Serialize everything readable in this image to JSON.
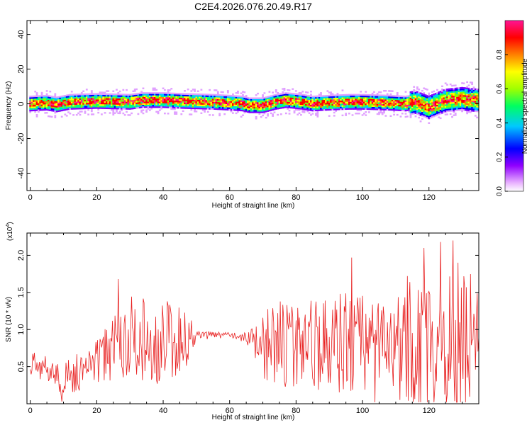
{
  "figure": {
    "title": "C2E4.2026.076.20.49.R17"
  },
  "chart_data": [
    {
      "type": "heatmap",
      "xlabel": "Height of straight line (km)",
      "ylabel": "Frequency (Hz)",
      "xlim": [
        -1,
        135
      ],
      "ylim": [
        -50,
        48
      ],
      "x_ticks": [
        0,
        20,
        40,
        60,
        80,
        100,
        120
      ],
      "x_tick_labels": [
        "0",
        "20",
        "40",
        "60",
        "80",
        "100",
        "120"
      ],
      "y_ticks": [
        -40,
        -20,
        0,
        20,
        40
      ],
      "y_tick_labels": [
        "-40",
        "-20",
        "0",
        "20",
        "40"
      ],
      "grid": false,
      "colorbar": {
        "label": "Normalized spectral amplitude",
        "range": [
          0,
          1
        ],
        "ticks": [
          0,
          0.2,
          0.4,
          0.6,
          0.8
        ],
        "tick_labels": [
          "0.0",
          "0.2",
          "0.4",
          "0.6",
          "0.8"
        ],
        "colormap": [
          "#ffffff",
          "#e0a0ff",
          "#8000ff",
          "#0000ff",
          "#00c8ff",
          "#00ff80",
          "#80ff00",
          "#ffff00",
          "#ff8000",
          "#ff0000",
          "#ff1493"
        ]
      },
      "ridge": {
        "x": [
          0,
          5,
          8,
          12,
          20,
          30,
          34,
          40,
          46,
          55,
          60,
          64,
          66,
          70,
          74,
          77,
          82,
          85,
          90,
          96,
          100,
          108,
          113,
          116,
          120,
          125,
          130,
          135
        ],
        "frequency": [
          0,
          0.5,
          -0.5,
          1,
          1.5,
          1,
          2,
          2,
          1.5,
          1,
          0.5,
          0,
          -1,
          -1,
          1,
          2,
          1,
          0,
          0.5,
          1,
          1,
          0.5,
          0,
          1,
          -2,
          2,
          3,
          2
        ]
      }
    },
    {
      "type": "line",
      "xlabel": "Height of straight line (km)",
      "ylabel": "SNR (10 * v/v)",
      "multiplier_label": "(x10",
      "multiplier_exponent": "4",
      "xlim": [
        -1,
        135
      ],
      "ylim": [
        0,
        2.3
      ],
      "x_ticks": [
        0,
        20,
        40,
        60,
        80,
        100,
        120
      ],
      "x_tick_labels": [
        "0",
        "20",
        "40",
        "60",
        "80",
        "100",
        "120"
      ],
      "y_ticks": [
        0.5,
        1.0,
        1.5,
        2.0
      ],
      "y_tick_labels": [
        "0.5",
        "1.0",
        "1.5",
        "2.0"
      ],
      "grid": false,
      "series": [
        {
          "color": "#e82020",
          "envelope_km": [
            0,
            10,
            20,
            25,
            30,
            40,
            47,
            50,
            60,
            65,
            70,
            75,
            80,
            90,
            95,
            100,
            105,
            110,
            115,
            120,
            125,
            130,
            135
          ],
          "envelope_mean": [
            0.55,
            0.35,
            0.55,
            0.75,
            0.85,
            0.85,
            0.9,
            0.92,
            0.93,
            0.9,
            0.8,
            0.82,
            0.82,
            0.8,
            0.8,
            0.8,
            0.8,
            0.8,
            0.78,
            0.8,
            0.8,
            0.8,
            0.8
          ],
          "envelope_swing": [
            0.15,
            0.25,
            0.3,
            0.5,
            0.6,
            0.6,
            0.45,
            0.06,
            0.04,
            0.08,
            0.45,
            0.6,
            0.6,
            0.65,
            0.7,
            0.7,
            0.55,
            0.7,
            0.9,
            0.95,
            1.05,
            1.1,
            1.0
          ],
          "peaks": [
            [
              26.5,
              1.68
            ],
            [
              96.8,
              1.97
            ],
            [
              113.5,
              1.72
            ],
            [
              118.5,
              2.1
            ],
            [
              123.6,
              2.18
            ],
            [
              127.3,
              2.2
            ],
            [
              128.8,
              1.9
            ],
            [
              130.7,
              1.56
            ],
            [
              113.7,
              0.04
            ],
            [
              103.8,
              0.02
            ],
            [
              9.5,
              0.03
            ]
          ]
        }
      ]
    }
  ]
}
